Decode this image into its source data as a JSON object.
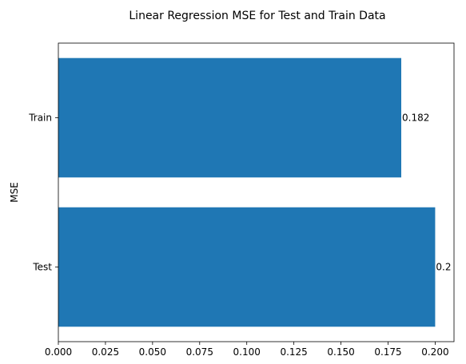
{
  "chart_data": {
    "type": "bar",
    "orientation": "horizontal",
    "title": "Linear Regression MSE for Test and Train Data",
    "xlabel": "",
    "ylabel": "MSE",
    "categories": [
      "Test",
      "Train"
    ],
    "values": [
      0.2,
      0.182
    ],
    "data_labels": [
      "0.2",
      "0.182"
    ],
    "xlim": [
      0,
      0.21
    ],
    "xticks": [
      0.0,
      0.025,
      0.05,
      0.075,
      0.1,
      0.125,
      0.15,
      0.175,
      0.2
    ],
    "xtick_labels": [
      "0.000",
      "0.025",
      "0.050",
      "0.075",
      "0.100",
      "0.125",
      "0.150",
      "0.175",
      "0.200"
    ],
    "bar_color": "#1f77b4",
    "grid": false,
    "legend": "none"
  }
}
